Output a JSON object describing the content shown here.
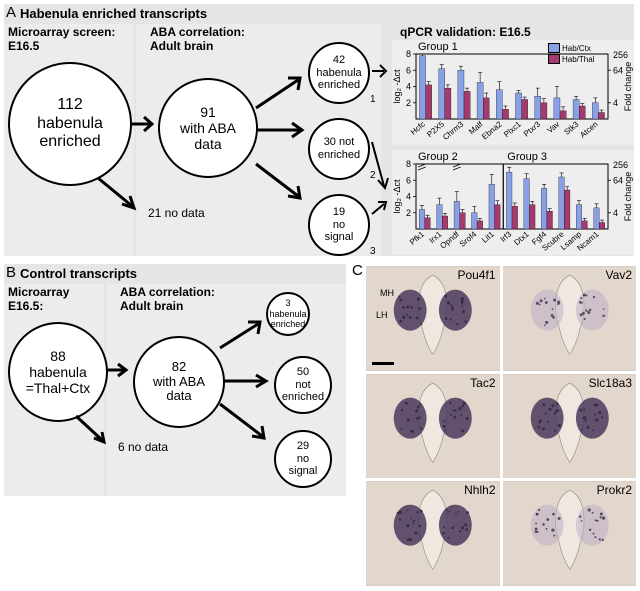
{
  "panelA": {
    "label": "A",
    "title": "Habenula enriched transcripts",
    "col1": {
      "title": "Microarray screen:\nE16.5"
    },
    "col2": {
      "title": "ABA correlation:\nAdult brain"
    },
    "col3": {
      "title": "qPCR validation: E16.5"
    },
    "circle_main": "112\nhabenula\nenriched",
    "circle_aba": "91\nwith ABA\ndata",
    "circle_r1": "42\nhabenula\nenriched",
    "circle_r2": "30 not\nenriched",
    "circle_r3": "19\nno\nsignal",
    "sub1": "1",
    "sub2": "2",
    "sub3": "3",
    "nodata": "21 no data",
    "chart1": {
      "title": "Group 1",
      "ylabel": "log₂ -Δct",
      "y2label": "Fold change",
      "ylim": [
        0,
        8
      ],
      "y2ticks": [
        4,
        64
      ],
      "y2major": 256,
      "categories": [
        "Hcfc",
        "P2X5",
        "Chrm3",
        "Malf",
        "Ebna2",
        "Plxc1",
        "Ptxr3",
        "Vav",
        "Stk3",
        "Atcen"
      ],
      "series": [
        {
          "name": "Hab/Ctx",
          "color": "#8aa0e6",
          "values": [
            7.8,
            6.2,
            6.0,
            4.5,
            3.6,
            3.2,
            2.8,
            2.6,
            2.4,
            2.0
          ]
        },
        {
          "name": "Hab/Thal",
          "color": "#a43a6e",
          "values": [
            4.2,
            3.8,
            3.4,
            2.6,
            1.2,
            2.4,
            2.0,
            1.0,
            1.6,
            0.8
          ]
        }
      ],
      "errors": [
        [
          0.6,
          0.5,
          0.5,
          1.2,
          1.0,
          0.3,
          1.0,
          1.4,
          0.4,
          0.6
        ],
        [
          0.4,
          0.4,
          0.4,
          0.6,
          0.4,
          0.3,
          0.5,
          0.5,
          0.3,
          0.3
        ]
      ]
    },
    "chart2": {
      "titleL": "Group 2",
      "titleR": "Group 3",
      "ylabel": "log₂ -Δct",
      "y2label": "Fold change",
      "ylim": [
        0,
        8
      ],
      "y2ticks": [
        4,
        64
      ],
      "y2major": 256,
      "split": 5,
      "categories": [
        "Pfk1",
        "Irx1",
        "Opndf",
        "Srof4",
        "Lit1",
        "Irf3",
        "Dtx1",
        "Fgf4",
        "Scubre",
        "Lsamp",
        "Ncam1"
      ],
      "series": [
        {
          "name": "Hab/Ctx",
          "color": "#8aa0e6",
          "values": [
            2.4,
            3.0,
            3.4,
            2.0,
            5.5,
            7.0,
            6.2,
            5.0,
            6.4,
            3.0,
            2.6
          ]
        },
        {
          "name": "Hab/Thal",
          "color": "#a43a6e",
          "values": [
            1.4,
            1.6,
            2.0,
            1.0,
            3.0,
            2.8,
            3.0,
            2.2,
            4.8,
            1.0,
            0.8
          ]
        }
      ],
      "errors": [
        [
          0.5,
          0.8,
          1.2,
          0.8,
          1.2,
          0.6,
          0.6,
          0.5,
          0.5,
          0.5,
          0.5
        ],
        [
          0.3,
          0.3,
          0.4,
          0.3,
          0.5,
          0.4,
          0.4,
          0.3,
          0.4,
          0.3,
          0.3
        ]
      ],
      "breaks": [
        0,
        2
      ]
    }
  },
  "panelB": {
    "label": "B",
    "title": "Control transcripts",
    "col1": {
      "title": "Microarray\nE16.5:"
    },
    "col2": {
      "title": "ABA correlation:\nAdult brain"
    },
    "circle_main": "88\nhabenula\n=Thal+Ctx",
    "circle_aba": "82\nwith ABA\ndata",
    "circle_r1": "3\nhabenula\nenriched",
    "circle_r2": "50\nnot\nenriched",
    "circle_r3": "29\nno\nsignal",
    "nodata": "6 no data"
  },
  "panelC": {
    "label": "C",
    "annotations": {
      "MH": "MH",
      "LH": "LH"
    },
    "images": [
      "Pou4f1",
      "Vav2",
      "Tac2",
      "Slc18a3",
      "Nhlh2",
      "Prokr2"
    ]
  },
  "colors": {
    "panel_bg": "#e5e5e5",
    "chart_bg": "#eeeeee",
    "bar1": "#8aa0e6",
    "bar2": "#a43a6e"
  }
}
